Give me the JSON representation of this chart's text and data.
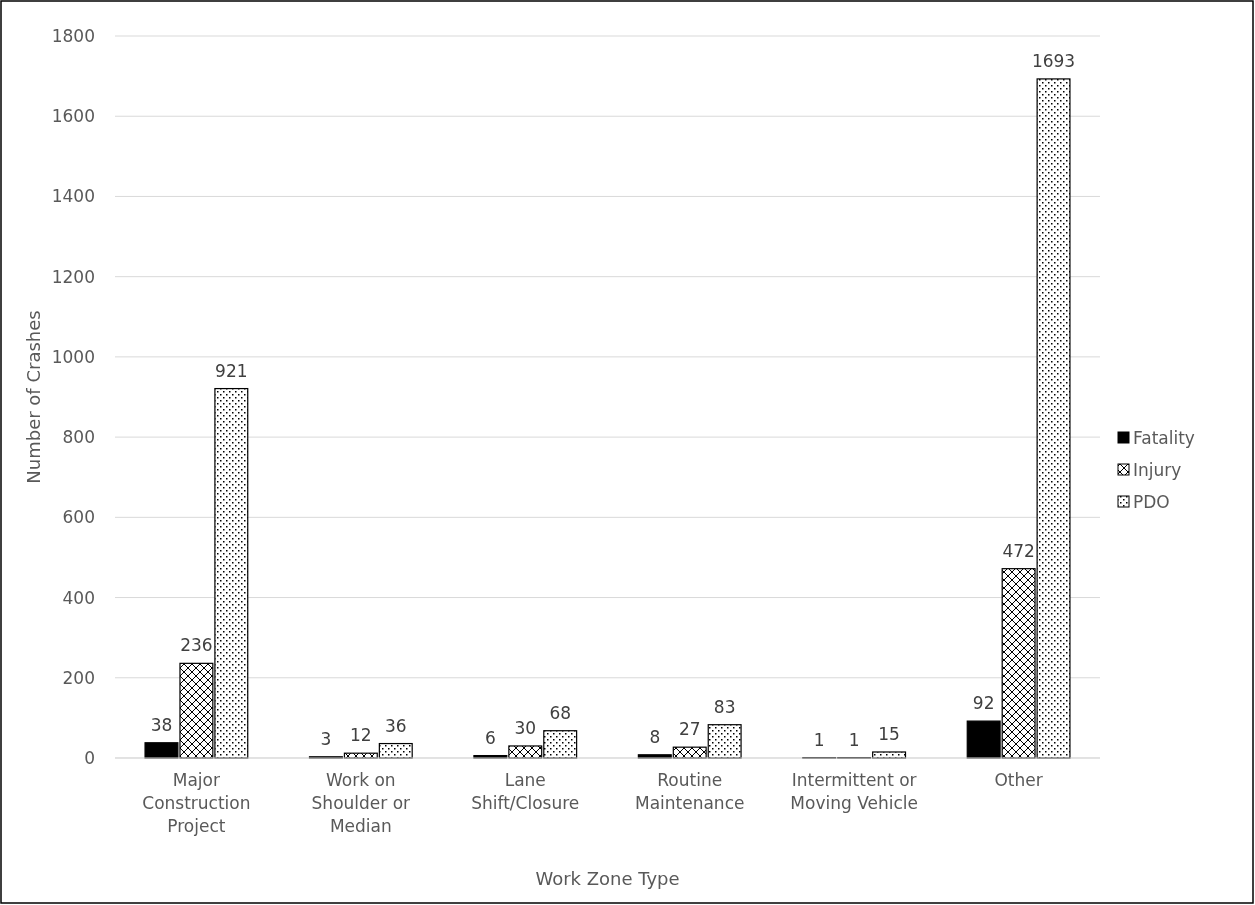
{
  "chart_data": {
    "type": "bar",
    "xlabel": "Work Zone Type",
    "ylabel": "Number of Crashes",
    "categories": [
      "Major Construction Project",
      "Work on Shoulder or Median",
      "Lane Shift/Closure",
      "Routine Maintenance",
      "Intermittent or Moving Vehicle",
      "Other"
    ],
    "series": [
      {
        "name": "Fatality",
        "color": "#000000",
        "values": [
          38,
          3,
          6,
          8,
          1,
          92
        ]
      },
      {
        "name": "Injury",
        "color": "#000000",
        "values": [
          236,
          12,
          30,
          27,
          1,
          472
        ]
      },
      {
        "name": "PDO",
        "color": "#000000",
        "values": [
          921,
          36,
          68,
          83,
          15,
          1693
        ]
      }
    ],
    "ylim": [
      0,
      1800
    ],
    "yticks": [
      0,
      200,
      400,
      600,
      800,
      1000,
      1200,
      1400,
      1600,
      1800
    ],
    "grid": "y",
    "legend": "right",
    "data_labels": true
  }
}
